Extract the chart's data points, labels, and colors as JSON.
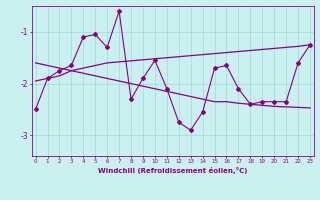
{
  "xlabel": "Windchill (Refroidissement éolien,°C)",
  "bg_color": "#caf0f0",
  "grid_color": "#a0d8d8",
  "line_color": "#880088",
  "hours": [
    0,
    1,
    2,
    3,
    4,
    5,
    6,
    7,
    8,
    9,
    10,
    11,
    12,
    13,
    14,
    15,
    16,
    17,
    18,
    19,
    20,
    21,
    22,
    23
  ],
  "windchill": [
    -2.5,
    -1.9,
    -1.75,
    -1.65,
    -1.1,
    -1.05,
    -1.3,
    -0.6,
    -2.3,
    -1.9,
    -1.55,
    -2.1,
    -2.75,
    -2.9,
    -2.55,
    -1.7,
    -1.65,
    -2.1,
    -2.4,
    -2.35,
    -2.35,
    -2.35,
    -1.6,
    -1.25
  ],
  "trend_down": [
    -1.6,
    -1.65,
    -1.7,
    -1.75,
    -1.8,
    -1.85,
    -1.9,
    -1.95,
    -2.0,
    -2.05,
    -2.1,
    -2.15,
    -2.2,
    -2.25,
    -2.3,
    -2.35,
    -2.35,
    -2.38,
    -2.4,
    -2.42,
    -2.44,
    -2.45,
    -2.46,
    -2.47
  ],
  "trend_up": [
    -1.95,
    -1.9,
    -1.85,
    -1.75,
    -1.7,
    -1.65,
    -1.6,
    -1.58,
    -1.56,
    -1.54,
    -1.52,
    -1.5,
    -1.48,
    -1.46,
    -1.44,
    -1.42,
    -1.4,
    -1.38,
    -1.36,
    -1.34,
    -1.32,
    -1.3,
    -1.28,
    -1.25
  ],
  "ylim": [
    -3.4,
    -0.5
  ],
  "yticks": [
    -3,
    -2,
    -1
  ],
  "xticks": [
    0,
    1,
    2,
    3,
    4,
    5,
    6,
    7,
    8,
    9,
    10,
    11,
    12,
    13,
    14,
    15,
    16,
    17,
    18,
    19,
    20,
    21,
    22,
    23
  ]
}
